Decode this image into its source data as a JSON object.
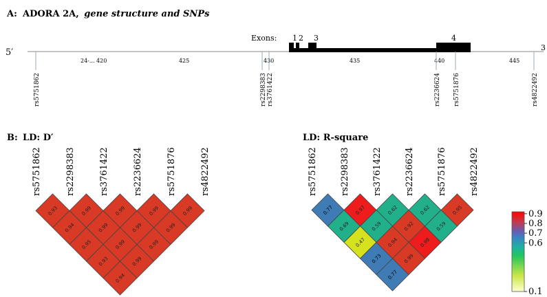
{
  "panel_a": {
    "label": "A:",
    "title_main": "ADORA 2A,",
    "title_italic": "gene structure and SNPs",
    "strand_start": "5′",
    "strand_end": "3",
    "exons_label": "Exons:",
    "exon_numbers": [
      "1",
      "2",
      "3",
      "4"
    ],
    "positions": [
      "24-... 420",
      "425",
      "430",
      "435",
      "440",
      "445"
    ],
    "snps": [
      "rs5751862",
      "rs2298383",
      "rs3761422",
      "rs2236624",
      "rs5751876",
      "rs4822492"
    ]
  },
  "panel_b": {
    "label": "B:",
    "title": "LD: D′",
    "snps": [
      "rs5751862",
      "rs2298383",
      "rs3761422",
      "rs2236624",
      "rs5751876",
      "rs4822492"
    ],
    "rows": [
      [
        "0.93",
        "0.99",
        "0.99",
        "0.99",
        "0.99"
      ],
      [
        "0.94",
        "0.99",
        "0.99",
        "0.99"
      ],
      [
        "0.95",
        "0.99",
        "0.99"
      ],
      [
        "0.93",
        "0.99"
      ],
      [
        "0.94"
      ]
    ],
    "cell_colors": [
      [
        "#d93a26",
        "#d93a26",
        "#d93a26",
        "#d93a26",
        "#d93a26"
      ],
      [
        "#d93a26",
        "#d93a26",
        "#d93a26",
        "#d93a26"
      ],
      [
        "#d93a26",
        "#d93a26",
        "#d93a26"
      ],
      [
        "#d93a26",
        "#d93a26"
      ],
      [
        "#d93a26"
      ]
    ]
  },
  "panel_c": {
    "title": "LD: R-square",
    "snps": [
      "rs5751862",
      "rs2298383",
      "rs3761422",
      "rs2236624",
      "rs5751876",
      "rs4822492"
    ],
    "rows": [
      [
        "0.77",
        "0.97",
        "0.62",
        "0.62",
        "0.95"
      ],
      [
        "0.69",
        "0.59",
        "0.92",
        "0.59"
      ],
      [
        "0.47",
        "0.94",
        "0.98"
      ],
      [
        "0.73",
        "0.99"
      ],
      [
        "0.77"
      ]
    ],
    "cell_colors": [
      [
        "#3f7cb5",
        "#ee1c1c",
        "#22b08a",
        "#22b08a",
        "#d93a26"
      ],
      [
        "#22b08a",
        "#22b08a",
        "#d93a26",
        "#22b08a"
      ],
      [
        "#d7e21e",
        "#d93a26",
        "#ee1c1c"
      ],
      [
        "#3f7cb5",
        "#d93a26"
      ],
      [
        "#3f7cb5"
      ]
    ]
  },
  "legend": {
    "ticks": [
      "0.9",
      "0.8",
      "0.7",
      "0.6",
      "0.1"
    ],
    "tick_values": [
      0.9,
      0.8,
      0.7,
      0.6,
      0.1
    ],
    "range": [
      0.1,
      0.92
    ],
    "gradient_colors": [
      "#ffffd0",
      "#c9e646",
      "#22c55e",
      "#1fb3a0",
      "#3b82c4",
      "#6b5bb0",
      "#c43a4a",
      "#ff0000"
    ]
  }
}
